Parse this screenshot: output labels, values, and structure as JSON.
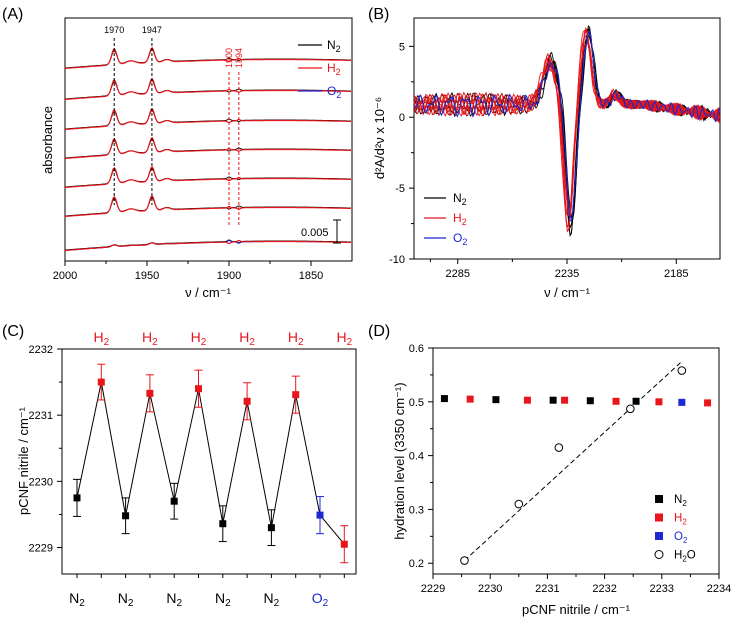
{
  "colors": {
    "n2": "#000000",
    "h2": "#e8161b",
    "o2": "#1b28d4",
    "h2o": "#000000"
  },
  "chart_data": [
    {
      "panel": "(A)",
      "type": "line",
      "xlabel": "ν / cm⁻¹",
      "ylabel": "absorbance",
      "xlim": [
        2000,
        1825
      ],
      "xticks": [
        2000,
        1950,
        1900,
        1850
      ],
      "xtick_labels": [
        "2000",
        "1950",
        "1900",
        "1850"
      ],
      "n_traces": 7,
      "peaks": [
        1970,
        1947
      ],
      "peak_labels": [
        "1970",
        "1947"
      ],
      "h2_peaks": [
        1900,
        1894
      ],
      "h2_peak_labels": [
        "1900",
        "1894"
      ],
      "scale_bar": "0.005",
      "series": [
        {
          "name": "N",
          "sub": "2",
          "color": "#000000"
        },
        {
          "name": "H",
          "sub": "2",
          "color": "#e8161b"
        },
        {
          "name": "O",
          "sub": "2",
          "color": "#1b28d4"
        }
      ]
    },
    {
      "panel": "(B)",
      "type": "line",
      "xlabel": "ν / cm⁻¹",
      "ylabel": "d²A/d²ν x 10⁻⁶",
      "xlim": [
        2305,
        2165
      ],
      "ylim": [
        -10,
        7
      ],
      "xticks": [
        2285,
        2235,
        2185
      ],
      "xtick_labels": [
        "2285",
        "2235",
        "2185"
      ],
      "yticks": [
        -10,
        -5,
        0,
        5
      ],
      "ytick_labels": [
        "-10",
        "-5",
        "0",
        "5"
      ],
      "zero_crossing": 2231,
      "series": [
        {
          "name": "N",
          "sub": "2",
          "color": "#000000"
        },
        {
          "name": "H",
          "sub": "2",
          "color": "#e8161b"
        },
        {
          "name": "O",
          "sub": "2",
          "color": "#1b28d4"
        }
      ]
    },
    {
      "panel": "(C)",
      "type": "line",
      "ylabel": "pCNF nitrile / cm⁻¹",
      "ylim": [
        2228.6,
        2232
      ],
      "yticks": [
        2229,
        2230,
        2231,
        2232
      ],
      "ytick_labels": [
        "2229",
        "2230",
        "2231",
        "2232"
      ],
      "points": [
        {
          "gas": "N",
          "sub": "2",
          "value": 2229.75,
          "err": 0.28,
          "color": "#000000"
        },
        {
          "gas": "H",
          "sub": "2",
          "value": 2231.5,
          "err": 0.27,
          "color": "#e8161b"
        },
        {
          "gas": "N",
          "sub": "2",
          "value": 2229.48,
          "err": 0.27,
          "color": "#000000"
        },
        {
          "gas": "H",
          "sub": "2",
          "value": 2231.33,
          "err": 0.28,
          "color": "#e8161b"
        },
        {
          "gas": "N",
          "sub": "2",
          "value": 2229.7,
          "err": 0.27,
          "color": "#000000"
        },
        {
          "gas": "H",
          "sub": "2",
          "value": 2231.4,
          "err": 0.28,
          "color": "#e8161b"
        },
        {
          "gas": "N",
          "sub": "2",
          "value": 2229.36,
          "err": 0.27,
          "color": "#000000"
        },
        {
          "gas": "H",
          "sub": "2",
          "value": 2231.21,
          "err": 0.28,
          "color": "#e8161b"
        },
        {
          "gas": "N",
          "sub": "2",
          "value": 2229.3,
          "err": 0.27,
          "color": "#000000"
        },
        {
          "gas": "H",
          "sub": "2",
          "value": 2231.31,
          "err": 0.28,
          "color": "#e8161b"
        },
        {
          "gas": "O",
          "sub": "2",
          "value": 2229.49,
          "err": 0.28,
          "color": "#1b28d4"
        },
        {
          "gas": "H",
          "sub": "2",
          "value": 2229.05,
          "err": 0.28,
          "color": "#e8161b"
        }
      ]
    },
    {
      "panel": "(D)",
      "type": "scatter",
      "xlabel": "pCNF nitrile / cm⁻¹",
      "ylabel": "hydration level (3350 cm⁻¹)",
      "xlim": [
        2229,
        2234
      ],
      "ylim": [
        0.18,
        0.6
      ],
      "xticks": [
        2229,
        2230,
        2231,
        2232,
        2233,
        2234
      ],
      "xtick_labels": [
        "2229",
        "2230",
        "2231",
        "2232",
        "2233",
        "2234"
      ],
      "yticks": [
        0.2,
        0.3,
        0.4,
        0.5,
        0.6
      ],
      "ytick_labels": [
        "0.2",
        "0.3",
        "0.4",
        "0.5",
        "0.6"
      ],
      "squares": [
        {
          "x": 2229.2,
          "y": 0.506,
          "color": "#000000"
        },
        {
          "x": 2229.65,
          "y": 0.505,
          "color": "#e8161b"
        },
        {
          "x": 2230.1,
          "y": 0.504,
          "color": "#000000"
        },
        {
          "x": 2230.65,
          "y": 0.503,
          "color": "#e8161b"
        },
        {
          "x": 2231.1,
          "y": 0.503,
          "color": "#000000"
        },
        {
          "x": 2231.3,
          "y": 0.503,
          "color": "#e8161b"
        },
        {
          "x": 2231.75,
          "y": 0.502,
          "color": "#000000"
        },
        {
          "x": 2232.2,
          "y": 0.501,
          "color": "#e8161b"
        },
        {
          "x": 2232.55,
          "y": 0.501,
          "color": "#000000"
        },
        {
          "x": 2232.95,
          "y": 0.5,
          "color": "#e8161b"
        },
        {
          "x": 2233.35,
          "y": 0.499,
          "color": "#1b28d4"
        },
        {
          "x": 2233.8,
          "y": 0.498,
          "color": "#e8161b"
        }
      ],
      "circles": [
        {
          "x": 2229.55,
          "y": 0.205
        },
        {
          "x": 2230.5,
          "y": 0.31
        },
        {
          "x": 2231.2,
          "y": 0.415
        },
        {
          "x": 2232.45,
          "y": 0.487
        },
        {
          "x": 2233.35,
          "y": 0.558
        }
      ],
      "fit": {
        "x": [
          2229.55,
          2233.35
        ],
        "y": [
          0.205,
          0.575
        ]
      },
      "legend": [
        {
          "name": "N",
          "sub": "2",
          "color": "#000000",
          "marker": "square"
        },
        {
          "name": "H",
          "sub": "2",
          "color": "#e8161b",
          "marker": "square"
        },
        {
          "name": "O",
          "sub": "2",
          "color": "#1b28d4",
          "marker": "square"
        },
        {
          "name": "H",
          "sub": "2",
          "tail": "O",
          "color": "#000000",
          "marker": "circle"
        }
      ]
    }
  ]
}
